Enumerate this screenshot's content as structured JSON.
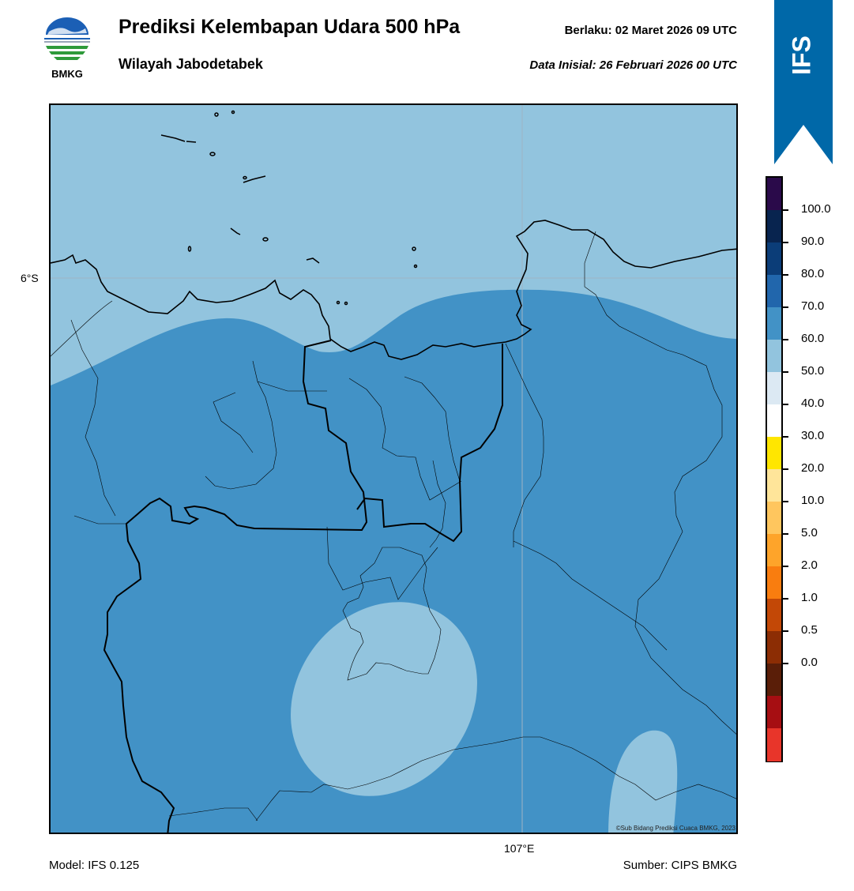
{
  "header": {
    "title": "Prediksi Kelembapan Udara 500 hPa",
    "region": "Wilayah Jabodetabek",
    "valid_label": "Berlaku:  02 Maret 2026 09 UTC",
    "init_label": "Data Inisial:  26 Februari 2026 00 UTC"
  },
  "logo": {
    "text": "BMKG",
    "icon": "bmkg-logo"
  },
  "ribbon": {
    "text": "IFS",
    "color": "#0068a8"
  },
  "map": {
    "lat_label": "6°S",
    "lon_label": "107°E",
    "copyright": "©Sub Bidang Prediksi Cuaca BMKG, 2023",
    "field_colors": {
      "dominant": "#4292c6",
      "moist_low": "#92c4de"
    }
  },
  "colorbar": {
    "tick_labels": [
      "100.0",
      "90.0",
      "80.0",
      "70.0",
      "60.0",
      "50.0",
      "40.0",
      "30.0",
      "20.0",
      "10.0",
      "5.0",
      "2.0",
      "1.0",
      "0.5",
      "0.0"
    ],
    "segment_colors": [
      "#2a0a4a",
      "#08244f",
      "#0b3d78",
      "#2166ac",
      "#4292c6",
      "#92c4de",
      "#dce9f3",
      "#ffffff",
      "#ffe600",
      "#ffe59a",
      "#ffc65e",
      "#fea42a",
      "#f97d0f",
      "#c34806",
      "#8c2d04",
      "#5a1e08",
      "#a60e12",
      "#e8352a"
    ]
  },
  "footer": {
    "model": "Model: IFS 0.125",
    "source": "Sumber: CIPS BMKG"
  }
}
